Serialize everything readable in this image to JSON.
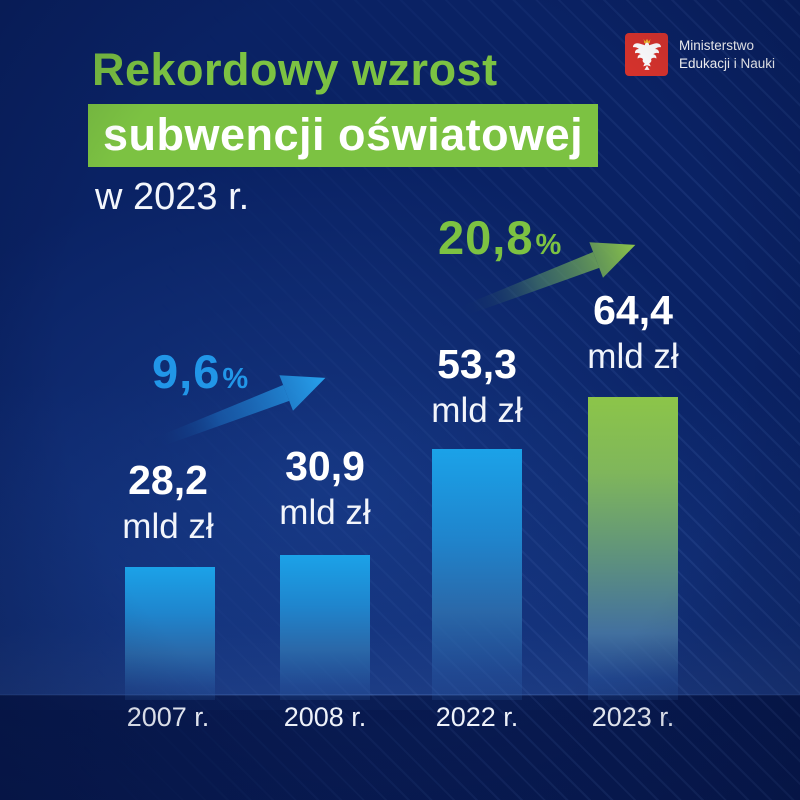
{
  "title": {
    "line1": "Rekordowy wzrost",
    "line2": "subwencji oświatowej",
    "line3": "w 2023 r."
  },
  "logo": {
    "line1": "Ministerstwo",
    "line2": "Edukacji i Nauki"
  },
  "chart_data": {
    "type": "bar",
    "title": "Rekordowy wzrost subwencji oświatowej w 2023 r.",
    "categories": [
      "2007 r.",
      "2008 r.",
      "2022 r.",
      "2023 r."
    ],
    "values": [
      28.2,
      30.9,
      53.3,
      64.4
    ],
    "value_labels": [
      "28,2",
      "30,9",
      "53,3",
      "64,4"
    ],
    "unit": "mld zł",
    "ylim": [
      0,
      64.4
    ],
    "grid": false,
    "legend": false,
    "annotations": [
      {
        "value": "9,6",
        "suffix": "%",
        "from": "2007 r.",
        "to": "2008 r.",
        "color": "#2196e8"
      },
      {
        "value": "20,8",
        "suffix": "%",
        "from": "2022 r.",
        "to": "2023 r.",
        "color": "#7cc242"
      }
    ],
    "bar_colors": [
      "#1ba2e8",
      "#1ba2e8",
      "#1ba2e8",
      "#8cc549"
    ]
  },
  "colors": {
    "background": "#0a2264",
    "accent_green": "#7cc242",
    "accent_blue": "#2196e8",
    "bar_blue_top": "#1ba2e8",
    "bar_green_top": "#8cc549",
    "logo_red": "#d7332c",
    "text": "#ffffff"
  }
}
